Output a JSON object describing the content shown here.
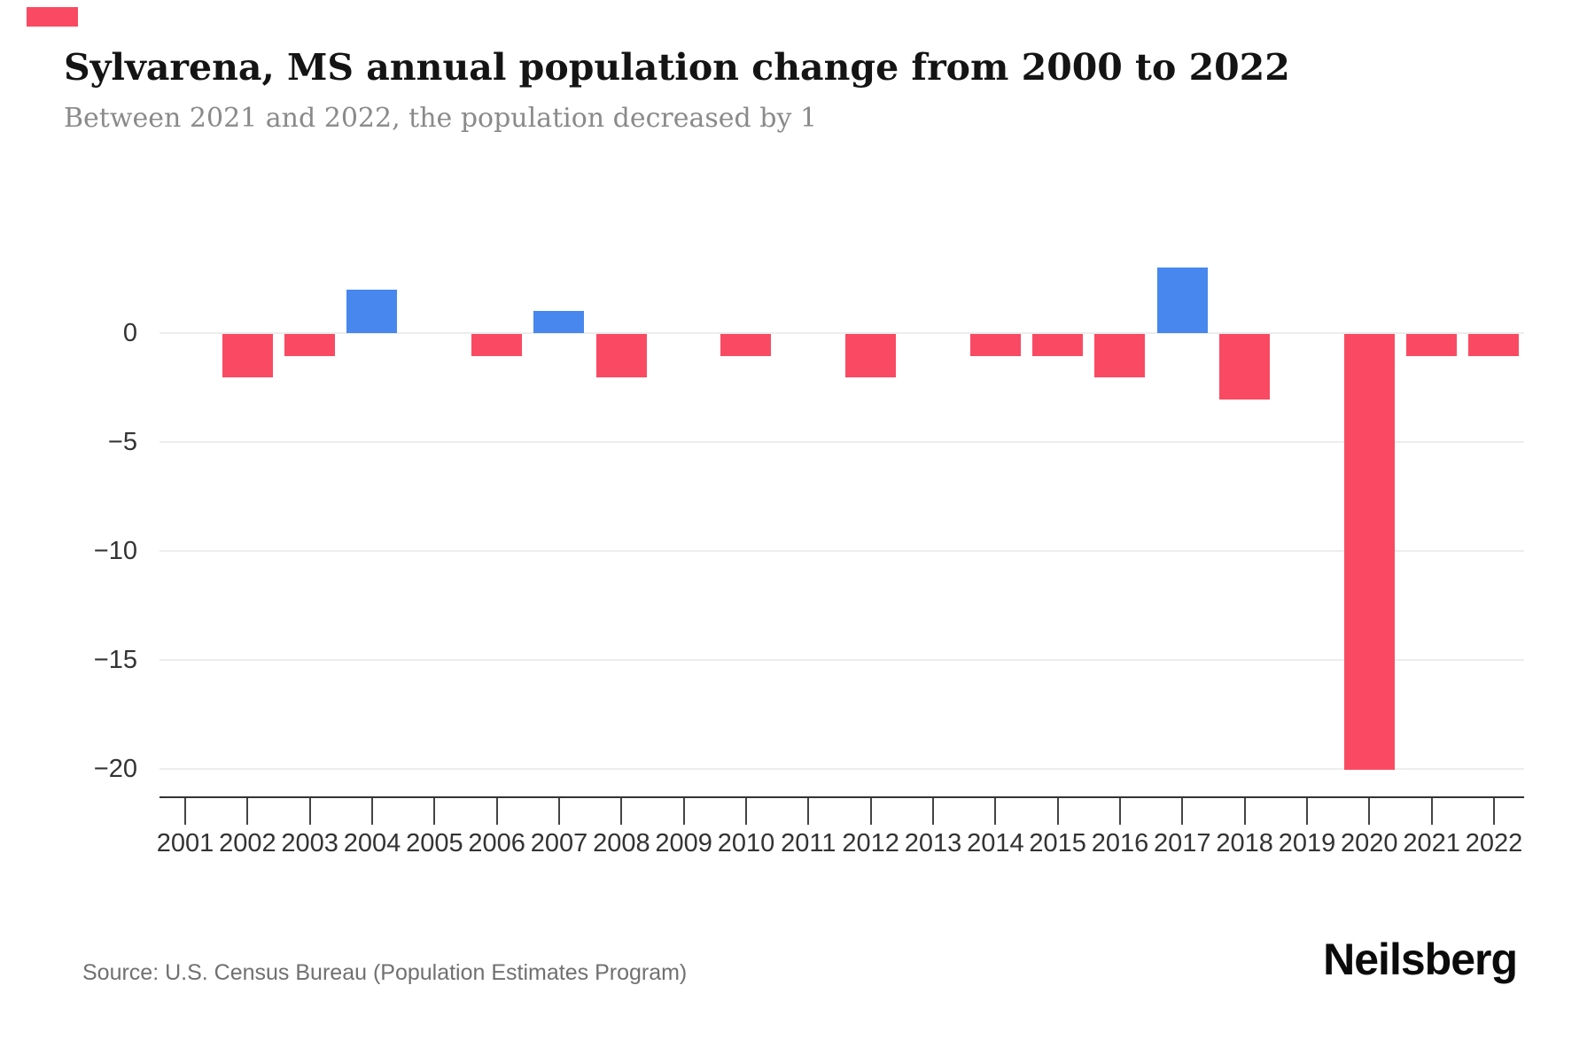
{
  "header": {
    "title": "Sylvarena, MS annual population change from 2000 to 2022",
    "subtitle": "Between 2021 and 2022, the population decreased by 1"
  },
  "artifact": {
    "color": "#fa4a63"
  },
  "chart_data": {
    "type": "bar",
    "title": "Sylvarena, MS annual population change from 2000 to 2022",
    "subtitle": "Between 2021 and 2022, the population decreased by 1",
    "categories": [
      "2001",
      "2002",
      "2003",
      "2004",
      "2005",
      "2006",
      "2007",
      "2008",
      "2009",
      "2010",
      "2011",
      "2012",
      "2013",
      "2014",
      "2015",
      "2016",
      "2017",
      "2018",
      "2019",
      "2020",
      "2021",
      "2022"
    ],
    "values": [
      0,
      -2,
      -1,
      2,
      0,
      -1,
      1,
      -2,
      0,
      -1,
      0,
      -2,
      0,
      -1,
      -1,
      -2,
      3,
      -3,
      0,
      -20,
      -1,
      -1
    ],
    "xlabel": "",
    "ylabel": "",
    "ylim": [
      -20,
      3
    ],
    "yticks": [
      {
        "value": 0,
        "label": "0"
      },
      {
        "value": -5,
        "label": "−5"
      },
      {
        "value": -10,
        "label": "−10"
      },
      {
        "value": -15,
        "label": "−15"
      },
      {
        "value": -20,
        "label": "−20"
      }
    ],
    "grid": "horizontal",
    "legend": "none",
    "colors": {
      "positive": "#4787ee",
      "negative": "#fa4a63",
      "gridline": "#ededed",
      "axis": "#333333",
      "tick_label": "#333333"
    }
  },
  "footer": {
    "source": "Source: U.S. Census Bureau (Population Estimates Program)",
    "brand": "Neilsberg"
  }
}
